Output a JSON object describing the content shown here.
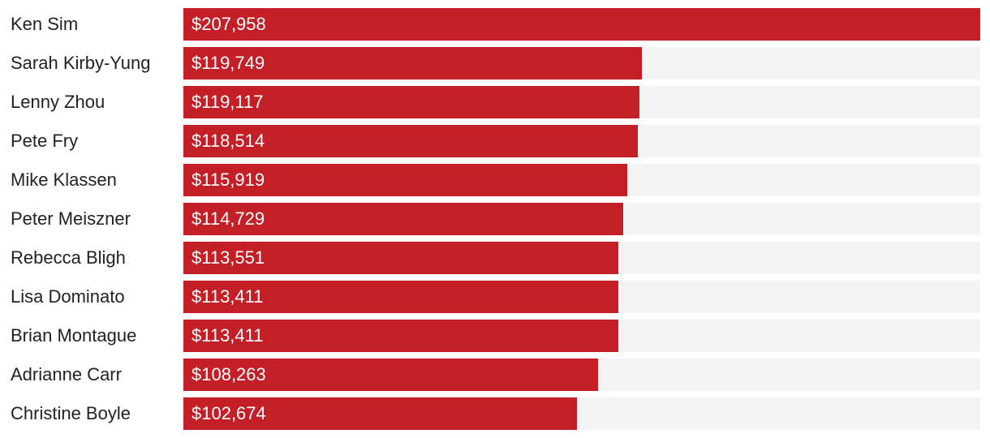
{
  "chart_data": {
    "type": "bar",
    "orientation": "horizontal",
    "categories": [
      "Ken Sim",
      "Sarah Kirby-Yung",
      "Lenny Zhou",
      "Pete Fry",
      "Mike Klassen",
      "Peter Meiszner",
      "Rebecca Bligh",
      "Lisa Dominato",
      "Brian Montague",
      "Adrianne Carr",
      "Christine Boyle"
    ],
    "values": [
      207958,
      119749,
      119117,
      118514,
      115919,
      114729,
      113551,
      113411,
      113411,
      108263,
      102674
    ],
    "value_labels": [
      "$207,958",
      "$119,749",
      "$119,117",
      "$118,514",
      "$115,919",
      "$114,729",
      "$113,551",
      "$113,411",
      "$113,411",
      "$108,263",
      "$102,674"
    ],
    "xlim": [
      0,
      207958
    ],
    "grid": false,
    "legend": false,
    "colors": {
      "bar": "#c41f27",
      "track": "#f3f3f3",
      "label": "#222222",
      "value_text": "#ffffff"
    }
  }
}
